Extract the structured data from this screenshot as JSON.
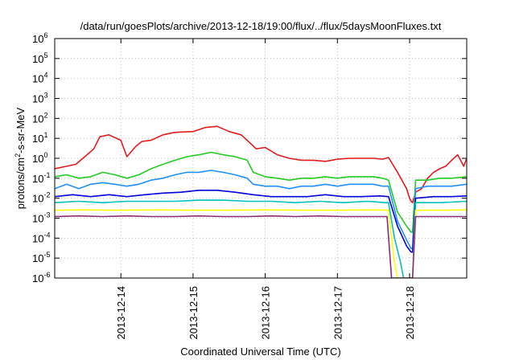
{
  "chart_data": {
    "type": "line",
    "title": "/data/run/goesPlots/archive/2013-12-18/19:00/flux/../flux/5daysMoonFluxes.txt",
    "xlabel": "Coordinated Universal Time (UTC)",
    "ylabel": "protons/cm²-s-sr-MeV",
    "y_scale": "log",
    "grid": true,
    "legend": "none",
    "xlim": [
      "2013-12-13 02:00",
      "2013-12-18 19:00"
    ],
    "ylim": [
      1e-06,
      1000000.0
    ],
    "x_ticks": [
      "2013-12-14",
      "2013-12-15",
      "2013-12-16",
      "2013-12-17",
      "2013-12-18"
    ],
    "y_ticks": [
      {
        "base": "10",
        "exp": "-6",
        "value": 1e-06
      },
      {
        "base": "10",
        "exp": "-5",
        "value": 1e-05
      },
      {
        "base": "10",
        "exp": "-4",
        "value": 0.0001
      },
      {
        "base": "10",
        "exp": "-3",
        "value": 0.001
      },
      {
        "base": "10",
        "exp": "-2",
        "value": 0.01
      },
      {
        "base": "10",
        "exp": "-1",
        "value": 0.1
      },
      {
        "base": "10",
        "exp": "0",
        "value": 1
      },
      {
        "base": "10",
        "exp": "1",
        "value": 10
      },
      {
        "base": "10",
        "exp": "2",
        "value": 100
      },
      {
        "base": "10",
        "exp": "3",
        "value": 1000
      },
      {
        "base": "10",
        "exp": "4",
        "value": 10000
      },
      {
        "base": "10",
        "exp": "5",
        "value": 100000
      },
      {
        "base": "10",
        "exp": "6",
        "value": 1000000
      }
    ],
    "series": [
      {
        "color": "#e41a1c",
        "x": [
          "2013-12-13 02:00",
          "2013-12-13 06:00",
          "2013-12-13 09:00",
          "2013-12-13 12:00",
          "2013-12-13 15:00",
          "2013-12-13 17:00",
          "2013-12-13 20:00",
          "2013-12-14 00:00",
          "2013-12-14 02:00",
          "2013-12-14 05:00",
          "2013-12-14 07:00",
          "2013-12-14 10:00",
          "2013-12-14 14:00",
          "2013-12-14 18:00",
          "2013-12-15 00:00",
          "2013-12-15 04:00",
          "2013-12-15 08:00",
          "2013-12-15 12:00",
          "2013-12-15 16:00",
          "2013-12-15 18:00",
          "2013-12-15 21:00",
          "2013-12-16 00:00",
          "2013-12-16 04:00",
          "2013-12-16 08:00",
          "2013-12-16 12:00",
          "2013-12-16 16:00",
          "2013-12-16 20:00",
          "2013-12-17 00:00",
          "2013-12-17 04:00",
          "2013-12-17 08:00",
          "2013-12-17 12:00",
          "2013-12-17 15:00",
          "2013-12-17 17:00",
          "2013-12-17 20:00",
          "2013-12-17 23:00",
          "2013-12-18 00:00",
          "2013-12-18 00:30",
          "2013-12-18 01:00",
          "2013-12-18 02:00",
          "2013-12-18 04:00",
          "2013-12-18 06:00",
          "2013-12-18 08:00",
          "2013-12-18 10:00",
          "2013-12-18 12:00",
          "2013-12-18 14:00",
          "2013-12-18 16:00",
          "2013-12-18 18:00",
          "2013-12-18 19:00"
        ],
        "values": [
          0.3,
          0.4,
          0.5,
          1.2,
          3,
          12,
          15,
          8,
          1.2,
          4,
          7,
          8,
          15,
          20,
          22,
          35,
          40,
          22,
          15,
          8,
          3,
          3.5,
          1.5,
          1.0,
          0.8,
          0.8,
          0.7,
          0.9,
          1.0,
          1.0,
          1.0,
          0.9,
          1.1,
          0.2,
          0.03,
          0.01,
          0.007,
          0.006,
          0.02,
          0.03,
          0.1,
          0.2,
          0.3,
          0.4,
          0.8,
          1.5,
          0.4,
          1.0
        ]
      },
      {
        "color": "#22cc22",
        "x": [
          "2013-12-13 02:00",
          "2013-12-13 06:00",
          "2013-12-13 10:00",
          "2013-12-13 14:00",
          "2013-12-13 18:00",
          "2013-12-13 22:00",
          "2013-12-14 02:00",
          "2013-12-14 06:00",
          "2013-12-14 10:00",
          "2013-12-14 14:00",
          "2013-12-14 18:00",
          "2013-12-14 22:00",
          "2013-12-15 02:00",
          "2013-12-15 06:00",
          "2013-12-15 10:00",
          "2013-12-15 14:00",
          "2013-12-15 18:00",
          "2013-12-15 20:00",
          "2013-12-16 00:00",
          "2013-12-16 04:00",
          "2013-12-16 08:00",
          "2013-12-16 12:00",
          "2013-12-16 16:00",
          "2013-12-16 20:00",
          "2013-12-17 00:00",
          "2013-12-17 04:00",
          "2013-12-17 08:00",
          "2013-12-17 12:00",
          "2013-12-17 15:00",
          "2013-12-17 17:00",
          "2013-12-17 20:00",
          "2013-12-17 23:00",
          "2013-12-18 00:30",
          "2013-12-18 01:00",
          "2013-12-18 02:00",
          "2013-12-18 06:00",
          "2013-12-18 10:00",
          "2013-12-18 14:00",
          "2013-12-18 19:00"
        ],
        "values": [
          0.12,
          0.15,
          0.1,
          0.12,
          0.2,
          0.15,
          0.1,
          0.15,
          0.3,
          0.5,
          0.8,
          1.2,
          1.5,
          2.0,
          1.5,
          1.2,
          0.8,
          0.2,
          0.12,
          0.1,
          0.08,
          0.1,
          0.1,
          0.12,
          0.1,
          0.12,
          0.12,
          0.12,
          0.1,
          0.08,
          0.002,
          0.0004,
          0.0002,
          0.0002,
          0.08,
          0.08,
          0.1,
          0.1,
          0.12
        ]
      },
      {
        "color": "#1e90ff",
        "x": [
          "2013-12-13 02:00",
          "2013-12-13 06:00",
          "2013-12-13 10:00",
          "2013-12-13 14:00",
          "2013-12-13 18:00",
          "2013-12-13 22:00",
          "2013-12-14 02:00",
          "2013-12-14 06:00",
          "2013-12-14 10:00",
          "2013-12-14 14:00",
          "2013-12-14 18:00",
          "2013-12-14 22:00",
          "2013-12-15 02:00",
          "2013-12-15 06:00",
          "2013-12-15 10:00",
          "2013-12-15 14:00",
          "2013-12-15 18:00",
          "2013-12-15 20:00",
          "2013-12-16 00:00",
          "2013-12-16 04:00",
          "2013-12-16 08:00",
          "2013-12-16 12:00",
          "2013-12-16 16:00",
          "2013-12-16 20:00",
          "2013-12-17 00:00",
          "2013-12-17 04:00",
          "2013-12-17 08:00",
          "2013-12-17 12:00",
          "2013-12-17 15:00",
          "2013-12-17 17:00",
          "2013-12-17 20:00",
          "2013-12-17 23:00",
          "2013-12-18 00:30",
          "2013-12-18 01:00",
          "2013-12-18 02:00",
          "2013-12-18 06:00",
          "2013-12-18 10:00",
          "2013-12-18 14:00",
          "2013-12-18 19:00"
        ],
        "values": [
          0.03,
          0.05,
          0.03,
          0.05,
          0.06,
          0.05,
          0.04,
          0.05,
          0.08,
          0.1,
          0.15,
          0.2,
          0.2,
          0.25,
          0.2,
          0.15,
          0.1,
          0.05,
          0.04,
          0.04,
          0.03,
          0.04,
          0.04,
          0.05,
          0.04,
          0.05,
          0.05,
          0.05,
          0.04,
          0.04,
          0.0007,
          8e-05,
          3e-05,
          3e-05,
          0.03,
          0.04,
          0.04,
          0.04,
          0.05
        ]
      },
      {
        "color": "#0000dd",
        "x": [
          "2013-12-13 02:00",
          "2013-12-13 08:00",
          "2013-12-13 14:00",
          "2013-12-13 20:00",
          "2013-12-14 02:00",
          "2013-12-14 08:00",
          "2013-12-14 14:00",
          "2013-12-14 20:00",
          "2013-12-15 02:00",
          "2013-12-15 08:00",
          "2013-12-15 14:00",
          "2013-12-15 20:00",
          "2013-12-16 02:00",
          "2013-12-16 08:00",
          "2013-12-16 14:00",
          "2013-12-16 20:00",
          "2013-12-17 02:00",
          "2013-12-17 08:00",
          "2013-12-17 14:00",
          "2013-12-17 17:00",
          "2013-12-17 20:00",
          "2013-12-17 23:00",
          "2013-12-18 00:30",
          "2013-12-18 01:00",
          "2013-12-18 02:00",
          "2013-12-18 08:00",
          "2013-12-18 14:00",
          "2013-12-18 19:00"
        ],
        "values": [
          0.012,
          0.015,
          0.012,
          0.015,
          0.012,
          0.015,
          0.018,
          0.02,
          0.025,
          0.025,
          0.02,
          0.015,
          0.012,
          0.012,
          0.012,
          0.015,
          0.012,
          0.012,
          0.013,
          0.012,
          0.0004,
          4e-05,
          2e-05,
          2e-05,
          0.01,
          0.012,
          0.012,
          0.013
        ]
      },
      {
        "color": "#00c0c0",
        "x": [
          "2013-12-13 02:00",
          "2013-12-13 10:00",
          "2013-12-13 18:00",
          "2013-12-14 02:00",
          "2013-12-14 10:00",
          "2013-12-14 18:00",
          "2013-12-15 02:00",
          "2013-12-15 10:00",
          "2013-12-15 18:00",
          "2013-12-16 02:00",
          "2013-12-16 10:00",
          "2013-12-16 18:00",
          "2013-12-17 02:00",
          "2013-12-17 10:00",
          "2013-12-17 16:00",
          "2013-12-17 17:00",
          "2013-12-17 19:00",
          "2013-12-17 21:00",
          "2013-12-17 22:00",
          "2013-12-18 01:00",
          "2013-12-18 02:00",
          "2013-12-18 10:00",
          "2013-12-18 19:00"
        ],
        "values": [
          0.006,
          0.007,
          0.006,
          0.007,
          0.007,
          0.007,
          0.008,
          0.008,
          0.007,
          0.007,
          0.006,
          0.007,
          0.006,
          0.007,
          0.006,
          0.006,
          0.0001,
          6e-06,
          1e-06,
          1e-06,
          0.006,
          0.006,
          0.007
        ]
      },
      {
        "color": "#ffff00",
        "x": [
          "2013-12-13 02:00",
          "2013-12-13 12:00",
          "2013-12-14 00:00",
          "2013-12-14 12:00",
          "2013-12-15 00:00",
          "2013-12-15 12:00",
          "2013-12-16 00:00",
          "2013-12-16 12:00",
          "2013-12-17 00:00",
          "2013-12-17 12:00",
          "2013-12-17 16:00",
          "2013-12-17 17:00",
          "2013-12-17 19:00",
          "2013-12-17 20:00",
          "2013-12-18 01:00",
          "2013-12-18 02:00",
          "2013-12-18 12:00",
          "2013-12-18 19:00"
        ],
        "values": [
          0.0025,
          0.0026,
          0.0025,
          0.0026,
          0.0025,
          0.0025,
          0.0026,
          0.0025,
          0.0025,
          0.0026,
          0.0025,
          0.0025,
          5e-06,
          1e-06,
          1e-06,
          0.0025,
          0.0025,
          0.0026
        ]
      },
      {
        "color": "#8b2a7a",
        "x": [
          "2013-12-13 02:00",
          "2013-12-13 10:00",
          "2013-12-13 18:00",
          "2013-12-14 02:00",
          "2013-12-14 10:00",
          "2013-12-14 18:00",
          "2013-12-15 02:00",
          "2013-12-15 10:00",
          "2013-12-15 18:00",
          "2013-12-16 02:00",
          "2013-12-16 10:00",
          "2013-12-16 18:00",
          "2013-12-17 02:00",
          "2013-12-17 10:00",
          "2013-12-17 16:00",
          "2013-12-17 16:30",
          "2013-12-17 18:00",
          "2013-12-18 01:00",
          "2013-12-18 02:00",
          "2013-12-18 10:00",
          "2013-12-18 19:00"
        ],
        "values": [
          0.0012,
          0.0013,
          0.0012,
          0.0013,
          0.0012,
          0.0012,
          0.0013,
          0.0012,
          0.0012,
          0.0013,
          0.0012,
          0.0013,
          0.0012,
          0.0012,
          0.0012,
          0.0012,
          1e-06,
          1e-06,
          0.0012,
          0.0012,
          0.0012
        ]
      }
    ]
  }
}
